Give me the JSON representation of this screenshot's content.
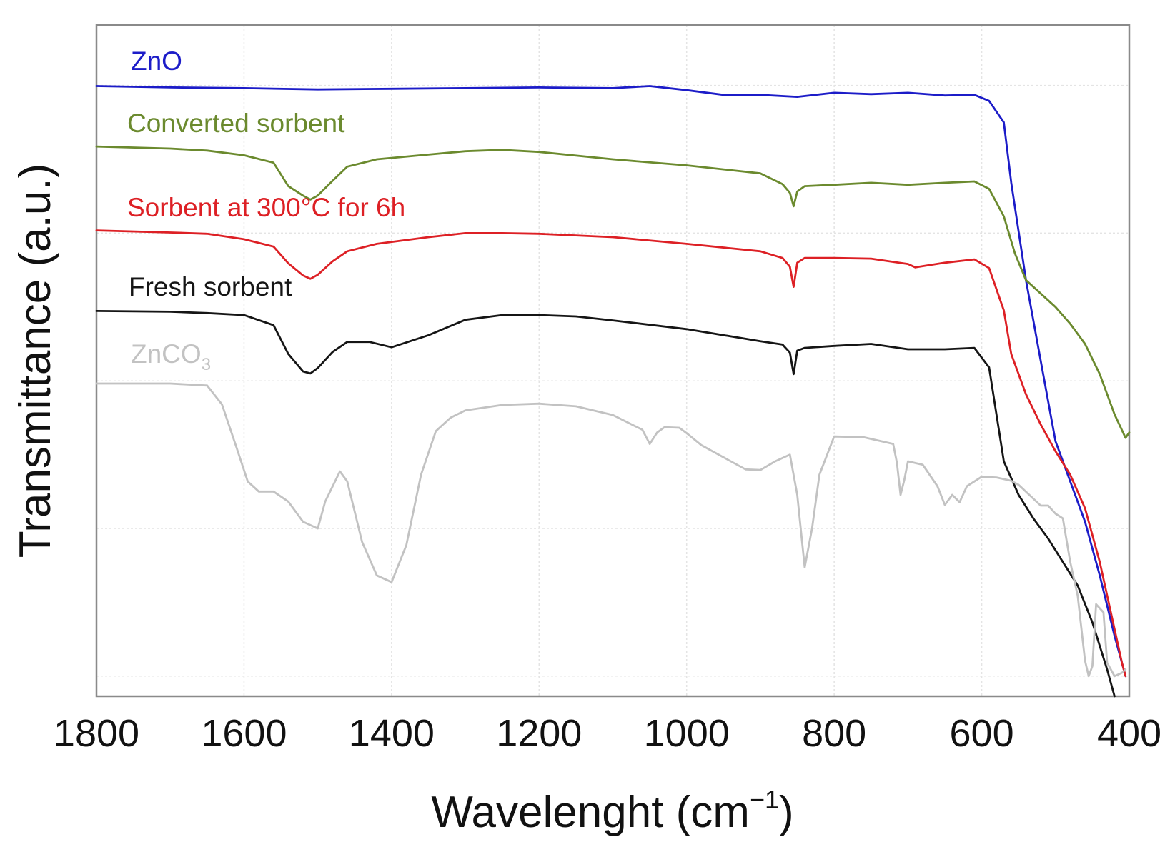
{
  "chart_data": {
    "type": "line",
    "title": "",
    "xlabel": "Wavelenght (cm",
    "xlabel_superscript": "−1",
    "xlabel_close": ")",
    "ylabel": "Transmittance (a.u.)",
    "x_reversed": true,
    "xlim": [
      1800,
      400
    ],
    "ylim": [
      0,
      100
    ],
    "y_ticks_shown": false,
    "grid": true,
    "x_ticks": [
      1800,
      1600,
      1400,
      1200,
      1000,
      800,
      600,
      400
    ],
    "y_grid_values": [
      3,
      25,
      47,
      69,
      91
    ],
    "series": [
      {
        "name": "ZnO",
        "label": "ZnO",
        "color": "#1c1cc8",
        "x": [
          1800,
          1700,
          1600,
          1500,
          1400,
          1300,
          1200,
          1100,
          1050,
          1000,
          950,
          900,
          850,
          800,
          750,
          700,
          650,
          610,
          590,
          570,
          560,
          540,
          520,
          500,
          480,
          460,
          440,
          420,
          405
        ],
        "y": [
          90.9,
          90.7,
          90.6,
          90.4,
          90.5,
          90.6,
          90.7,
          90.6,
          90.9,
          90.3,
          89.6,
          89.6,
          89.3,
          89.9,
          89.7,
          89.9,
          89.5,
          89.6,
          88.7,
          85.5,
          76.5,
          62.0,
          50.0,
          38.0,
          32.0,
          26.0,
          18.0,
          9.0,
          3.0
        ]
      },
      {
        "name": "Converted sorbent",
        "label": "Converted sorbent",
        "color": "#6b8a2e",
        "x": [
          1800,
          1700,
          1650,
          1600,
          1560,
          1540,
          1520,
          1510,
          1500,
          1480,
          1460,
          1420,
          1350,
          1300,
          1250,
          1200,
          1100,
          1000,
          900,
          870,
          860,
          855,
          850,
          840,
          800,
          750,
          700,
          650,
          610,
          590,
          570,
          555,
          540,
          500,
          480,
          460,
          440,
          420,
          405,
          400
        ],
        "y": [
          81.9,
          81.6,
          81.3,
          80.6,
          79.5,
          76.0,
          74.6,
          74.0,
          74.6,
          76.8,
          78.9,
          80.0,
          80.7,
          81.2,
          81.4,
          81.1,
          80.0,
          79.1,
          77.9,
          76.3,
          75.0,
          73.0,
          75.2,
          76.0,
          76.2,
          76.5,
          76.2,
          76.5,
          76.7,
          75.6,
          71.5,
          66.0,
          62.0,
          58.0,
          55.5,
          52.5,
          48.0,
          42.0,
          38.5,
          39.3
        ]
      },
      {
        "name": "Sorbent at 300°C for 6h",
        "label": "Sorbent at 300°C for 6h",
        "color": "#dd2025",
        "x": [
          1800,
          1700,
          1650,
          1600,
          1560,
          1540,
          1520,
          1510,
          1500,
          1480,
          1460,
          1420,
          1350,
          1300,
          1250,
          1200,
          1100,
          1000,
          900,
          870,
          860,
          855,
          850,
          840,
          800,
          750,
          700,
          690,
          650,
          610,
          590,
          570,
          560,
          540,
          520,
          500,
          480,
          460,
          440,
          420,
          410,
          405
        ],
        "y": [
          69.4,
          69.1,
          68.9,
          68.1,
          67.0,
          64.5,
          62.7,
          62.2,
          62.8,
          64.8,
          66.3,
          67.4,
          68.4,
          69.0,
          69.0,
          68.9,
          68.4,
          67.4,
          66.3,
          65.3,
          64.0,
          61.0,
          64.6,
          65.3,
          65.3,
          65.2,
          64.4,
          63.9,
          64.6,
          65.1,
          63.8,
          57.5,
          51.0,
          45.0,
          40.5,
          36.5,
          33.0,
          28.0,
          20.0,
          10.0,
          5.0,
          3.0
        ]
      },
      {
        "name": "Fresh sorbent",
        "label": "Fresh sorbent",
        "color": "#151515",
        "x": [
          1800,
          1700,
          1650,
          1600,
          1560,
          1540,
          1520,
          1510,
          1500,
          1480,
          1460,
          1430,
          1400,
          1350,
          1300,
          1250,
          1200,
          1150,
          1100,
          1000,
          900,
          870,
          860,
          855,
          850,
          840,
          800,
          750,
          700,
          650,
          610,
          590,
          570,
          550,
          530,
          510,
          490,
          470,
          450,
          430,
          420
        ],
        "y": [
          57.4,
          57.3,
          57.1,
          56.8,
          55.3,
          51.0,
          48.4,
          48.1,
          48.9,
          51.3,
          52.8,
          52.8,
          52.0,
          53.8,
          56.1,
          56.8,
          56.8,
          56.6,
          56.0,
          54.7,
          52.9,
          52.4,
          51.2,
          48.0,
          51.5,
          51.9,
          52.2,
          52.5,
          51.7,
          51.7,
          51.9,
          49.0,
          35.0,
          30.0,
          26.5,
          23.5,
          20.0,
          16.5,
          11.0,
          4.0,
          0.0
        ]
      },
      {
        "name": "ZnCO3",
        "label": "ZnCO",
        "label_subscript": "3",
        "color": "#c2c2c2",
        "x": [
          1800,
          1700,
          1650,
          1630,
          1610,
          1595,
          1580,
          1560,
          1540,
          1520,
          1500,
          1490,
          1470,
          1460,
          1440,
          1420,
          1400,
          1380,
          1360,
          1340,
          1320,
          1300,
          1250,
          1200,
          1150,
          1100,
          1060,
          1050,
          1040,
          1030,
          1010,
          1000,
          980,
          950,
          920,
          900,
          880,
          860,
          850,
          840,
          830,
          820,
          800,
          760,
          720,
          715,
          710,
          705,
          700,
          680,
          660,
          650,
          640,
          630,
          620,
          600,
          580,
          560,
          550,
          520,
          510,
          500,
          490,
          480,
          470,
          460,
          455,
          450,
          445,
          435,
          430,
          420,
          410,
          405
        ],
        "y": [
          46.6,
          46.6,
          46.3,
          43.5,
          37.0,
          32.0,
          30.5,
          30.5,
          29.0,
          26.0,
          25.0,
          29.0,
          33.5,
          32.0,
          23.0,
          18.0,
          17.0,
          22.5,
          33.0,
          39.5,
          41.5,
          42.6,
          43.4,
          43.6,
          43.2,
          41.9,
          39.7,
          37.6,
          39.3,
          40.1,
          40.0,
          39.2,
          37.4,
          35.6,
          33.8,
          33.7,
          35.0,
          36.0,
          30.0,
          19.2,
          25.0,
          33.0,
          38.7,
          38.6,
          37.6,
          34.8,
          30.0,
          32.2,
          35.0,
          34.5,
          31.3,
          28.5,
          30.0,
          28.9,
          31.3,
          32.7,
          32.6,
          32.1,
          31.5,
          28.4,
          28.4,
          27.2,
          26.5,
          20.0,
          15.0,
          5.3,
          3.0,
          4.5,
          13.7,
          12.5,
          5.0,
          3.0,
          3.5,
          4.0
        ]
      }
    ]
  }
}
